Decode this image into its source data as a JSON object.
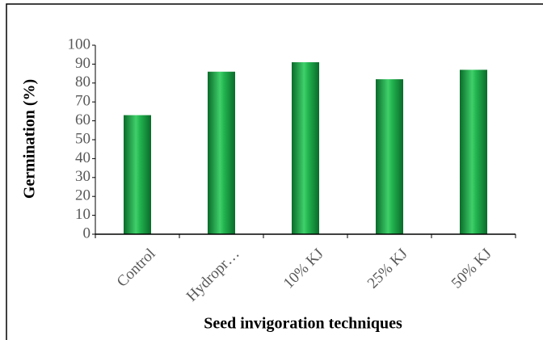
{
  "chart_data": {
    "type": "bar",
    "categories": [
      "Control",
      "Hydropr…",
      "10% KJ",
      "25% KJ",
      "50% KJ"
    ],
    "values": [
      63,
      86,
      91,
      82,
      87
    ],
    "color": "#1fa84a",
    "xlabel": "Seed invigoration techniques",
    "ylabel": "Germination (%)",
    "ylim": [
      0,
      100
    ],
    "yticks": [
      0,
      10,
      20,
      30,
      40,
      50,
      60,
      70,
      80,
      90,
      100
    ]
  }
}
